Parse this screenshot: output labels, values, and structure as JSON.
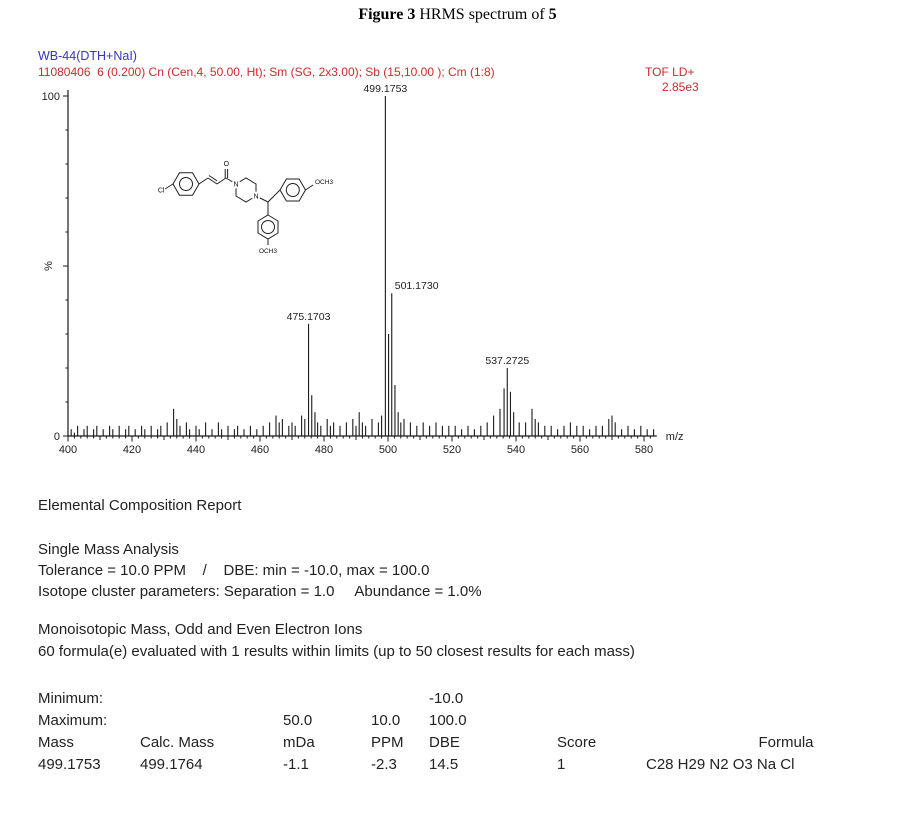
{
  "figure": {
    "caption_bold1": "Figure 3",
    "caption_mid": " HRMS spectrum of ",
    "caption_bold2": "5"
  },
  "spectrum_header": {
    "sample_id": "WB-44(DTH+NaI)",
    "acquisition": "11080406  6 (0.200) Cn (Cen,4, 50.00, Ht); Sm (SG, 2x3.00); Sb (15,10.00 ); Cm (1:8)",
    "mode": "TOF LD+",
    "intensity_scale": "2.85e3"
  },
  "chart_data": {
    "type": "bar",
    "title": "HRMS spectrum of 5",
    "xlabel": "m/z",
    "ylabel": "%",
    "xlim": [
      398,
      585
    ],
    "ylim": [
      0,
      100
    ],
    "x_ticks": [
      400,
      420,
      440,
      460,
      480,
      500,
      520,
      540,
      560,
      580
    ],
    "y_axis_labels": {
      "top": "100",
      "bottom": "0"
    },
    "grid": false,
    "labeled_peaks": [
      {
        "mz": 475.17,
        "intensity": 33,
        "label": "475.1703"
      },
      {
        "mz": 499.18,
        "intensity": 100,
        "label": "499.1753"
      },
      {
        "mz": 501.17,
        "intensity": 42,
        "label": "501.1730",
        "align": "left"
      },
      {
        "mz": 537.27,
        "intensity": 20,
        "label": "537.2725"
      }
    ],
    "peaks": [
      [
        401,
        2
      ],
      [
        402,
        1
      ],
      [
        403,
        3
      ],
      [
        405,
        2
      ],
      [
        406,
        3
      ],
      [
        408,
        2
      ],
      [
        409,
        3
      ],
      [
        411,
        2
      ],
      [
        413,
        3
      ],
      [
        414,
        2
      ],
      [
        416,
        3
      ],
      [
        418,
        2
      ],
      [
        419,
        3
      ],
      [
        421,
        2
      ],
      [
        423,
        3
      ],
      [
        424,
        2
      ],
      [
        426,
        3
      ],
      [
        428,
        2
      ],
      [
        429,
        3
      ],
      [
        431,
        4
      ],
      [
        433,
        8
      ],
      [
        434,
        5
      ],
      [
        435,
        3
      ],
      [
        437,
        4
      ],
      [
        438,
        2
      ],
      [
        440,
        3
      ],
      [
        441,
        2
      ],
      [
        443,
        4
      ],
      [
        445,
        2
      ],
      [
        447,
        4
      ],
      [
        448,
        2
      ],
      [
        450,
        3
      ],
      [
        452,
        2
      ],
      [
        453,
        3
      ],
      [
        455,
        2
      ],
      [
        457,
        3
      ],
      [
        459,
        2
      ],
      [
        461,
        3
      ],
      [
        463,
        4
      ],
      [
        465,
        6
      ],
      [
        466,
        4
      ],
      [
        467,
        5
      ],
      [
        469,
        3
      ],
      [
        470,
        4
      ],
      [
        471,
        3
      ],
      [
        473,
        6
      ],
      [
        474,
        5
      ],
      [
        475.17,
        33
      ],
      [
        476.17,
        12
      ],
      [
        477.17,
        7
      ],
      [
        478,
        4
      ],
      [
        479,
        3
      ],
      [
        481,
        5
      ],
      [
        482,
        3
      ],
      [
        483,
        4
      ],
      [
        485,
        3
      ],
      [
        487,
        4
      ],
      [
        489,
        5
      ],
      [
        490,
        3
      ],
      [
        491,
        7
      ],
      [
        492,
        4
      ],
      [
        493,
        3
      ],
      [
        495,
        5
      ],
      [
        497,
        4
      ],
      [
        498,
        6
      ],
      [
        499.18,
        100
      ],
      [
        500.18,
        30
      ],
      [
        501.17,
        42
      ],
      [
        502.17,
        15
      ],
      [
        503.17,
        7
      ],
      [
        504,
        4
      ],
      [
        505,
        5
      ],
      [
        507,
        4
      ],
      [
        509,
        3
      ],
      [
        511,
        4
      ],
      [
        513,
        3
      ],
      [
        515,
        4
      ],
      [
        517,
        3
      ],
      [
        519,
        3
      ],
      [
        521,
        3
      ],
      [
        523,
        2
      ],
      [
        525,
        3
      ],
      [
        527,
        2
      ],
      [
        529,
        3
      ],
      [
        531,
        4
      ],
      [
        533,
        6
      ],
      [
        535,
        8
      ],
      [
        536.27,
        14
      ],
      [
        537.27,
        20
      ],
      [
        538.27,
        13
      ],
      [
        539.27,
        7
      ],
      [
        541,
        4
      ],
      [
        543,
        4
      ],
      [
        545,
        8
      ],
      [
        546,
        5
      ],
      [
        547,
        4
      ],
      [
        549,
        3
      ],
      [
        551,
        3
      ],
      [
        553,
        2
      ],
      [
        555,
        3
      ],
      [
        557,
        4
      ],
      [
        559,
        3
      ],
      [
        561,
        3
      ],
      [
        563,
        2
      ],
      [
        565,
        3
      ],
      [
        567,
        3
      ],
      [
        569,
        5
      ],
      [
        570,
        6
      ],
      [
        571,
        4
      ],
      [
        573,
        2
      ],
      [
        575,
        3
      ],
      [
        577,
        2
      ],
      [
        579,
        3
      ],
      [
        581,
        2
      ],
      [
        583,
        2
      ]
    ]
  },
  "structure": {
    "labels": {
      "cl": "Cl",
      "o": "O",
      "n1": "N",
      "n2": "N",
      "och3_right": "OCH3",
      "och3_bottom": "OCH3"
    }
  },
  "report": {
    "title": "Elemental Composition Report",
    "section": "Single Mass Analysis",
    "tolerance_line": "Tolerance = 10.0 PPM    /    DBE: min = -10.0, max = 100.0",
    "isotope_line": "Isotope cluster parameters: Separation = 1.0     Abundance = 1.0%",
    "ions_line": "Monoisotopic Mass, Odd and Even Electron Ions",
    "evaluated_line": "60 formula(e) evaluated with 1 results within limits (up to 50 closest results for each mass)",
    "limits": {
      "minimum_label": "Minimum:",
      "maximum_label": "Maximum:",
      "min_dbe": "-10.0",
      "max_mda": "50.0",
      "max_ppm": "10.0",
      "max_dbe": "100.0"
    },
    "table": {
      "headers": [
        "Mass",
        "Calc. Mass",
        "mDa",
        "PPM",
        "DBE",
        "Score",
        "Formula"
      ],
      "rows": [
        [
          "499.1753",
          "499.1764",
          "-1.1",
          "-2.3",
          "14.5",
          "1",
          "C28 H29 N2 O3 Na Cl"
        ]
      ]
    }
  },
  "colors": {
    "header_blue": "#3434c8",
    "header_red": "#cc2a2a",
    "spectrum_ink": "#1a1a1a",
    "text": "#222222"
  }
}
